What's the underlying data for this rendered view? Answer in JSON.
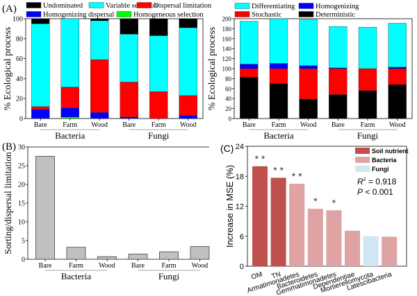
{
  "chart_data": [
    {
      "id": "A-left",
      "panel_label": "(A)",
      "type": "bar",
      "stacked": true,
      "ylabel": "% Ecological process",
      "ylim": [
        0,
        100
      ],
      "yticks": [
        0,
        20,
        40,
        60,
        80,
        100
      ],
      "categories": [
        "Bare",
        "Farm",
        "Wood",
        "Bare",
        "Farm",
        "Wood"
      ],
      "groups": [
        {
          "label": "Bacteria",
          "members": [
            0,
            1,
            2
          ]
        },
        {
          "label": "Fungi",
          "members": [
            3,
            4,
            5
          ]
        }
      ],
      "legend": [
        {
          "name": "Undominated",
          "color": "#000000"
        },
        {
          "name": "Variable selection",
          "color": "#00ffff"
        },
        {
          "name": "Dispersal limitation",
          "color": "#ff0000"
        },
        {
          "name": "Homogenizing dispersal",
          "color": "#0000ff"
        },
        {
          "name": "Homogeneous selection",
          "color": "#00ff00"
        }
      ],
      "series": [
        {
          "name": "Homogeneous selection",
          "color": "#00ff00",
          "values": [
            0,
            1.5,
            0,
            0,
            0,
            0
          ]
        },
        {
          "name": "Homogenizing dispersal",
          "color": "#0000ff",
          "values": [
            9,
            9,
            6,
            1.5,
            0,
            3
          ]
        },
        {
          "name": "Dispersal limitation",
          "color": "#ff0000",
          "values": [
            3,
            21,
            53,
            35,
            27,
            20
          ]
        },
        {
          "name": "Variable selection",
          "color": "#00ffff",
          "values": [
            83,
            68.5,
            39,
            48,
            56,
            68
          ]
        },
        {
          "name": "Undominated",
          "color": "#000000",
          "values": [
            5,
            0,
            2,
            15.5,
            17,
            9
          ]
        }
      ]
    },
    {
      "id": "A-right",
      "type": "bar",
      "stacked": true,
      "ylabel": "% Ecological process",
      "ylim": [
        0,
        200
      ],
      "yticks": [
        0,
        20,
        40,
        60,
        80,
        100,
        120,
        140,
        160,
        180,
        200
      ],
      "categories": [
        "Bare",
        "Farm",
        "Wood",
        "Bare",
        "Farm",
        "Wood"
      ],
      "groups": [
        {
          "label": "Bacteria",
          "members": [
            0,
            1,
            2
          ]
        },
        {
          "label": "Fungi",
          "members": [
            3,
            4,
            5
          ]
        }
      ],
      "legend": [
        {
          "name": "Differentiating",
          "color": "#00ffff"
        },
        {
          "name": "Homogenizing",
          "color": "#0000ff"
        },
        {
          "name": "Stochastic",
          "color": "#ff0000"
        },
        {
          "name": "Deterministic",
          "color": "#000000"
        }
      ],
      "series": [
        {
          "name": "Deterministic",
          "color": "#000000",
          "values": [
            83,
            70,
            39,
            48,
            56,
            68
          ]
        },
        {
          "name": "Stochastic",
          "color": "#ff0000",
          "values": [
            17,
            30,
            61,
            52,
            44,
            32
          ]
        },
        {
          "name": "Homogenizing",
          "color": "#0000ff",
          "values": [
            9,
            10.5,
            6,
            1.5,
            0,
            3
          ]
        },
        {
          "name": "Differentiating",
          "color": "#00ffff",
          "values": [
            86,
            89.5,
            92,
            83,
            83,
            88
          ]
        }
      ]
    },
    {
      "id": "B",
      "panel_label": "(B)",
      "type": "bar",
      "ylabel": "Sorting/dispersal limitation",
      "ylim": [
        0,
        30
      ],
      "yticks": [
        0,
        5,
        10,
        15,
        20,
        25,
        30
      ],
      "categories": [
        "Bare",
        "Farm",
        "Wood",
        "Bare",
        "Farm",
        "Wood"
      ],
      "groups": [
        {
          "label": "Bacteria",
          "members": [
            0,
            1,
            2
          ]
        },
        {
          "label": "Fungi",
          "members": [
            3,
            4,
            5
          ]
        }
      ],
      "values": [
        27.5,
        3.2,
        0.7,
        1.4,
        2.0,
        3.4
      ],
      "bar_color": "#c0c0c0"
    },
    {
      "id": "C",
      "panel_label": "(C)",
      "type": "bar",
      "ylabel": "Increase in MSE (%)",
      "ylim": [
        0,
        24
      ],
      "yticks": [
        0,
        6,
        12,
        18,
        24
      ],
      "categories": [
        "OM",
        "TN",
        "Armatimonadetes",
        "Bacteroidetes",
        "Gemmatimonadetes",
        "Dependentiae",
        "Mortierellomycota",
        "Latescibacteria"
      ],
      "values": [
        20.0,
        17.7,
        16.5,
        11.5,
        11.2,
        7.1,
        6.0,
        5.9
      ],
      "classes": [
        "Soil nutrient",
        "Soil nutrient",
        "Bacteria",
        "Bacteria",
        "Bacteria",
        "Bacteria",
        "Fungi",
        "Bacteria"
      ],
      "significance": [
        "**",
        "**",
        "**",
        "*",
        "*",
        "",
        "",
        ""
      ],
      "legend": [
        {
          "name": "Soil nutrient",
          "color": "#c0504d"
        },
        {
          "name": "Bacteria",
          "color": "#e0a3a3"
        },
        {
          "name": "Fungi",
          "color": "#d0e6f2"
        }
      ],
      "annotation": {
        "r2_label": "R",
        "r2_sup": "2",
        "r2_text": " = 0.918",
        "p_label": "P",
        "p_text": " <  0.001"
      }
    }
  ]
}
